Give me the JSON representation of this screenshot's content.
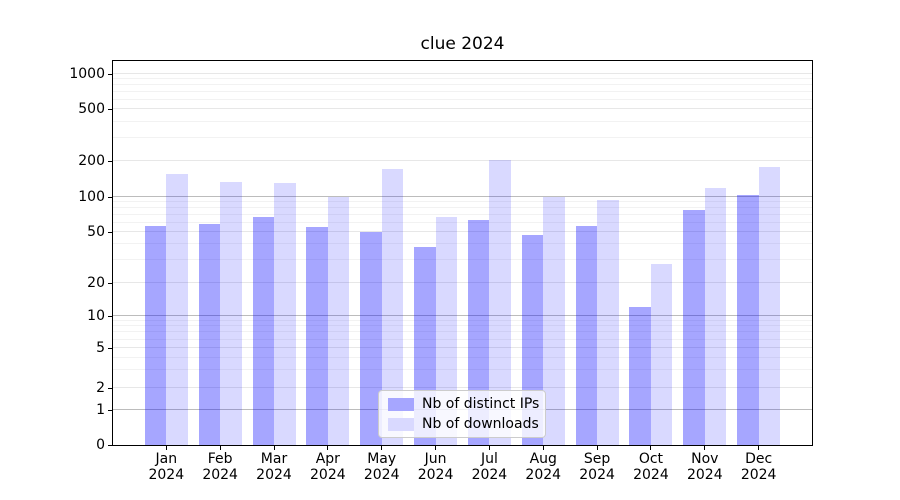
{
  "chart_data": {
    "type": "bar",
    "title": "clue 2024",
    "yscale": "symlog",
    "yticks": [
      0,
      1,
      2,
      5,
      10,
      20,
      50,
      100,
      200,
      500,
      1000
    ],
    "ylim": [
      0,
      1000
    ],
    "grid": true,
    "legend_position": "bottom-center",
    "months": [
      "Jan",
      "Feb",
      "Mar",
      "Apr",
      "May",
      "Jun",
      "Jul",
      "Aug",
      "Sep",
      "Oct",
      "Nov",
      "Dec"
    ],
    "year": "2024",
    "series": [
      {
        "name": "Nb of distinct IPs",
        "color": "rgba(0,0,255,0.35)",
        "color_on_white": "#a6a6ff",
        "values": [
          56,
          59,
          67,
          55,
          50,
          38,
          63,
          47,
          56,
          12,
          78,
          104
        ]
      },
      {
        "name": "Nb of downloads",
        "color": "rgba(0,0,255,0.15)",
        "color_on_white": "#d9d9ff",
        "values": [
          157,
          134,
          131,
          100,
          171,
          67,
          205,
          100,
          94,
          28,
          120,
          179
        ]
      }
    ]
  }
}
